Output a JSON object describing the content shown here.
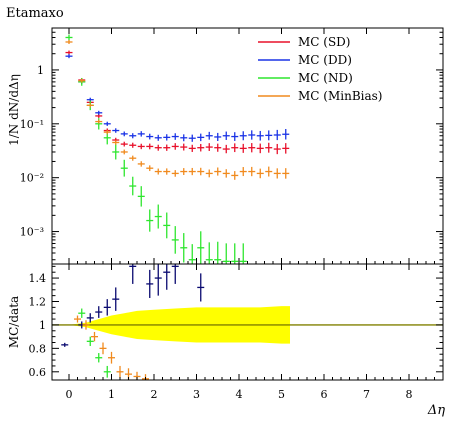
{
  "page_title": "Etamaxo",
  "chart_data": [
    {
      "type": "scatter",
      "title": "Etamaxo",
      "ylabel": "1/N dN/dΔη",
      "xlabel": "",
      "xlim": [
        -0.4,
        8.8
      ],
      "ylim": [
        0.00025,
        6
      ],
      "yscale": "log",
      "yticks": [
        {
          "value": 1,
          "label": "1"
        },
        {
          "value": 0.1,
          "label": "10⁻¹"
        },
        {
          "value": 0.01,
          "label": "10⁻²"
        },
        {
          "value": 0.001,
          "label": "10⁻³"
        }
      ],
      "legend_position": "top-right",
      "series": [
        {
          "name": "MC (SD)",
          "color": "#e8102a",
          "x": [
            0.0,
            0.3,
            0.5,
            0.7,
            0.9,
            1.1,
            1.3,
            1.5,
            1.7,
            1.9,
            2.1,
            2.3,
            2.5,
            2.7,
            2.9,
            3.1,
            3.3,
            3.5,
            3.7,
            3.9,
            4.1,
            4.3,
            4.5,
            4.7,
            4.9,
            5.1
          ],
          "y": [
            2.1,
            0.65,
            0.25,
            0.14,
            0.075,
            0.05,
            0.042,
            0.04,
            0.038,
            0.038,
            0.036,
            0.036,
            0.038,
            0.037,
            0.035,
            0.036,
            0.037,
            0.036,
            0.034,
            0.036,
            0.035,
            0.036,
            0.035,
            0.036,
            0.034,
            0.035
          ]
        },
        {
          "name": "MC (DD)",
          "color": "#1a33e6",
          "x": [
            0.0,
            0.3,
            0.5,
            0.7,
            0.9,
            1.1,
            1.3,
            1.5,
            1.7,
            1.9,
            2.1,
            2.3,
            2.5,
            2.7,
            2.9,
            3.1,
            3.3,
            3.5,
            3.7,
            3.9,
            4.1,
            4.3,
            4.5,
            4.7,
            4.9,
            5.1
          ],
          "y": [
            1.8,
            0.6,
            0.28,
            0.16,
            0.1,
            0.075,
            0.065,
            0.06,
            0.065,
            0.058,
            0.055,
            0.056,
            0.058,
            0.055,
            0.054,
            0.056,
            0.06,
            0.057,
            0.06,
            0.058,
            0.06,
            0.062,
            0.06,
            0.061,
            0.062,
            0.064
          ]
        },
        {
          "name": "MC (ND)",
          "color": "#2ee62e",
          "x": [
            0.0,
            0.3,
            0.5,
            0.7,
            0.9,
            1.1,
            1.3,
            1.5,
            1.7,
            1.9,
            2.1,
            2.3,
            2.5,
            2.7,
            2.9,
            3.1,
            3.3,
            3.5,
            3.7,
            3.9,
            4.1
          ],
          "y": [
            4.0,
            0.6,
            0.22,
            0.1,
            0.055,
            0.03,
            0.015,
            0.007,
            0.0045,
            0.0016,
            0.0019,
            0.0013,
            0.0007,
            0.0005,
            0.0003,
            0.0005,
            0.0003,
            0.0003,
            0.00028,
            0.00028,
            0.00028
          ]
        },
        {
          "name": "MC (MinBias)",
          "color": "#f08a1e",
          "x": [
            0.0,
            0.3,
            0.5,
            0.7,
            0.9,
            1.1,
            1.3,
            1.5,
            1.7,
            1.9,
            2.1,
            2.3,
            2.5,
            2.7,
            2.9,
            3.1,
            3.3,
            3.5,
            3.7,
            3.9,
            4.1,
            4.3,
            4.5,
            4.7,
            4.9,
            5.1
          ],
          "y": [
            3.3,
            0.63,
            0.22,
            0.11,
            0.07,
            0.045,
            0.03,
            0.023,
            0.018,
            0.015,
            0.013,
            0.013,
            0.012,
            0.013,
            0.013,
            0.013,
            0.012,
            0.013,
            0.012,
            0.011,
            0.013,
            0.013,
            0.012,
            0.013,
            0.012,
            0.012
          ]
        }
      ]
    },
    {
      "type": "scatter",
      "title": "",
      "ylabel": "MC/data",
      "xlabel": "Δη",
      "xlim": [
        -0.4,
        8.8
      ],
      "ylim": [
        0.53,
        1.52
      ],
      "yticks": [
        0.6,
        0.8,
        1,
        1.2,
        1.4
      ],
      "xticks": [
        0,
        1,
        2,
        3,
        4,
        5,
        6,
        7,
        8
      ],
      "reference_line": 1,
      "uncertainty_band": {
        "color": "#ffff00",
        "x": [
          0.0,
          0.4,
          0.7,
          1.0,
          1.3,
          1.6,
          2.0,
          2.5,
          3.0,
          3.5,
          4.0,
          4.5,
          5.0,
          5.2
        ],
        "half_width": [
          0.0,
          0.02,
          0.05,
          0.08,
          0.1,
          0.12,
          0.13,
          0.14,
          0.15,
          0.15,
          0.15,
          0.15,
          0.16,
          0.16
        ]
      },
      "series": [
        {
          "name": "MC (DD)",
          "color": "#0a0a70",
          "x": [
            -0.1,
            0.3,
            0.5,
            0.7,
            0.9,
            1.1,
            1.5,
            1.9,
            2.1,
            2.3,
            2.5,
            3.1
          ],
          "y": [
            0.83,
            1.0,
            1.06,
            1.11,
            1.15,
            1.22,
            1.5,
            1.35,
            1.4,
            1.45,
            1.5,
            1.32
          ],
          "err": [
            0.0,
            0.03,
            0.04,
            0.05,
            0.07,
            0.1,
            0.15,
            0.12,
            0.15,
            0.15,
            0.15,
            0.12
          ]
        },
        {
          "name": "MC (ND)",
          "color": "#2ee62e",
          "x": [
            0.3,
            0.5,
            0.7,
            0.9
          ],
          "y": [
            1.1,
            0.86,
            0.72,
            0.6
          ],
          "err": [
            0.04,
            0.04,
            0.04,
            0.05
          ]
        },
        {
          "name": "MC (MinBias)",
          "color": "#f08a1e",
          "x": [
            0.2,
            0.4,
            0.6,
            0.8,
            1.0,
            1.2,
            1.4,
            1.6,
            1.8
          ],
          "y": [
            1.05,
            1.0,
            0.9,
            0.8,
            0.72,
            0.6,
            0.58,
            0.56,
            0.54
          ],
          "err": [
            0.03,
            0.04,
            0.04,
            0.05,
            0.05,
            0.05,
            0.05,
            0.04,
            0.04
          ]
        }
      ]
    }
  ]
}
